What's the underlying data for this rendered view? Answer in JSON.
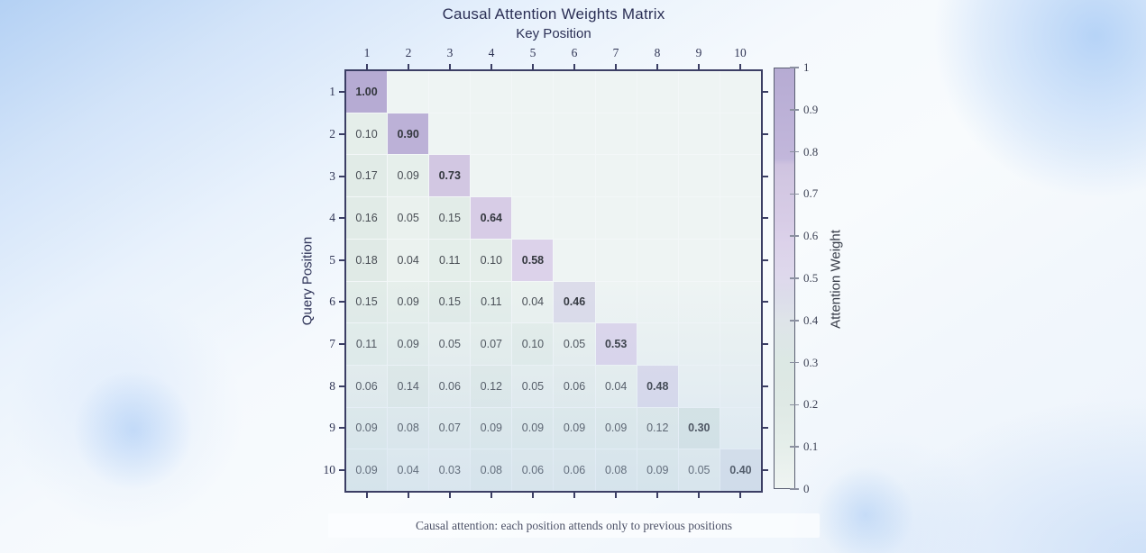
{
  "chart_data": {
    "type": "heatmap",
    "title": "Causal Attention Weights Matrix",
    "xlabel": "Key Position",
    "ylabel": "Query Position",
    "x_ticks": [
      "1",
      "2",
      "3",
      "4",
      "5",
      "6",
      "7",
      "8",
      "9",
      "10"
    ],
    "y_ticks": [
      "1",
      "2",
      "3",
      "4",
      "5",
      "6",
      "7",
      "8",
      "9",
      "10"
    ],
    "values": [
      [
        1.0,
        null,
        null,
        null,
        null,
        null,
        null,
        null,
        null,
        null
      ],
      [
        0.1,
        0.9,
        null,
        null,
        null,
        null,
        null,
        null,
        null,
        null
      ],
      [
        0.17,
        0.09,
        0.73,
        null,
        null,
        null,
        null,
        null,
        null,
        null
      ],
      [
        0.16,
        0.05,
        0.15,
        0.64,
        null,
        null,
        null,
        null,
        null,
        null
      ],
      [
        0.18,
        0.04,
        0.11,
        0.1,
        0.58,
        null,
        null,
        null,
        null,
        null
      ],
      [
        0.15,
        0.09,
        0.15,
        0.11,
        0.04,
        0.46,
        null,
        null,
        null,
        null
      ],
      [
        0.11,
        0.09,
        0.05,
        0.07,
        0.1,
        0.05,
        0.53,
        null,
        null,
        null
      ],
      [
        0.06,
        0.14,
        0.06,
        0.12,
        0.05,
        0.06,
        0.04,
        0.48,
        null,
        null
      ],
      [
        0.09,
        0.08,
        0.07,
        0.09,
        0.09,
        0.09,
        0.09,
        0.12,
        0.3,
        null
      ],
      [
        0.09,
        0.04,
        0.03,
        0.08,
        0.06,
        0.06,
        0.08,
        0.09,
        0.05,
        0.4
      ]
    ],
    "bold_diagonal": true,
    "value_decimals": 2,
    "colorbar": {
      "label": "Attention Weight",
      "ticks": [
        "1",
        "0.9",
        "0.8",
        "0.7",
        "0.6",
        "0.5",
        "0.4",
        "0.3",
        "0.2",
        "0.1",
        "0"
      ],
      "range": [
        0,
        1
      ],
      "position": "right"
    },
    "colormap_stops": [
      [
        0.0,
        "#eff4f2"
      ],
      [
        0.1,
        "#e5eeea"
      ],
      [
        0.2,
        "#dfe9e5"
      ],
      [
        0.3,
        "#dce8e4"
      ],
      [
        0.4,
        "#dee4e9"
      ],
      [
        0.46,
        "#dcdcea"
      ],
      [
        0.5,
        "#ded9ec"
      ],
      [
        0.58,
        "#dcd2ea"
      ],
      [
        0.64,
        "#d7cce6"
      ],
      [
        0.73,
        "#d2c7e2"
      ],
      [
        0.77,
        "#cfc3e0"
      ],
      [
        0.785,
        "#c2b7db"
      ],
      [
        1.0,
        "#b6abd3"
      ]
    ],
    "masked_cell_color": "#eef4f3",
    "grid_color": "#f3f7f8",
    "spine_color": "#3b3e64",
    "caption": "Causal attention: each position attends only to previous positions",
    "grid": true,
    "legend_position": "none"
  }
}
